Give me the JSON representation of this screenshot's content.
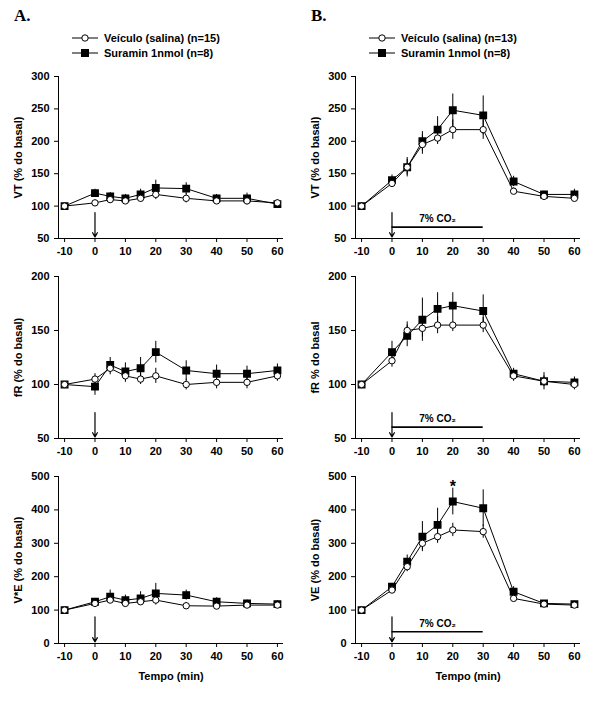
{
  "chart_data": [
    {
      "type": "line",
      "title": "A.",
      "legend": "top",
      "y_label": "VT (% do basal)",
      "x": [
        -10,
        0,
        5,
        10,
        15,
        20,
        30,
        40,
        50,
        60
      ],
      "xlim": [
        -12,
        62
      ],
      "xticks": [
        -10,
        0,
        10,
        20,
        30,
        40,
        50,
        60
      ],
      "ylim": [
        50,
        300
      ],
      "yticks": [
        50,
        100,
        150,
        200,
        250,
        300
      ],
      "arrow_x": 0,
      "series": [
        {
          "name": "Veículo (salina) (n=15)",
          "color": "#000000",
          "marker": "open_circle",
          "values": [
            100,
            105,
            110,
            108,
            112,
            118,
            112,
            108,
            108,
            105
          ],
          "errors": [
            0,
            4,
            5,
            5,
            6,
            8,
            7,
            5,
            6,
            5
          ]
        },
        {
          "name": "Suramin 1nmol (n=8)",
          "color": "#000000",
          "marker": "square",
          "values": [
            100,
            120,
            115,
            112,
            118,
            128,
            127,
            112,
            112,
            103
          ],
          "errors": [
            0,
            6,
            6,
            6,
            8,
            12,
            9,
            6,
            8,
            5
          ]
        }
      ]
    },
    {
      "type": "line",
      "y_label": "fR (% do basal)",
      "x": [
        -10,
        0,
        5,
        10,
        15,
        20,
        30,
        40,
        50,
        60
      ],
      "xlim": [
        -12,
        62
      ],
      "xticks": [
        -10,
        0,
        10,
        20,
        30,
        40,
        50,
        60
      ],
      "ylim": [
        50,
        200
      ],
      "yticks": [
        50,
        100,
        150,
        200
      ],
      "arrow_x": 0,
      "series": [
        {
          "name": "Veículo (salina) (n=15)",
          "color": "#000000",
          "marker": "open_circle",
          "values": [
            100,
            105,
            115,
            108,
            105,
            108,
            100,
            102,
            102,
            108
          ],
          "errors": [
            0,
            5,
            6,
            6,
            5,
            7,
            5,
            6,
            6,
            5
          ]
        },
        {
          "name": "Suramin 1nmol (n=8)",
          "color": "#000000",
          "marker": "square",
          "values": [
            100,
            98,
            118,
            112,
            115,
            130,
            113,
            110,
            110,
            113
          ],
          "errors": [
            0,
            8,
            7,
            8,
            10,
            10,
            9,
            8,
            7,
            6
          ]
        }
      ]
    },
    {
      "type": "line",
      "y_label": "V*E (% do basal)",
      "x_label": "Tempo (min)",
      "x": [
        -10,
        0,
        5,
        10,
        15,
        20,
        30,
        40,
        50,
        60
      ],
      "xlim": [
        -12,
        62
      ],
      "xticks": [
        -10,
        0,
        10,
        20,
        30,
        40,
        50,
        60
      ],
      "ylim": [
        0,
        500
      ],
      "yticks": [
        0,
        100,
        200,
        300,
        400,
        500
      ],
      "arrow_x": 0,
      "series": [
        {
          "name": "Veículo (salina) (n=15)",
          "color": "#000000",
          "marker": "open_circle",
          "values": [
            100,
            120,
            130,
            120,
            125,
            130,
            113,
            112,
            115,
            115
          ],
          "errors": [
            0,
            8,
            10,
            10,
            10,
            15,
            10,
            8,
            8,
            8
          ]
        },
        {
          "name": "Suramin 1nmol (n=8)",
          "color": "#000000",
          "marker": "square",
          "values": [
            100,
            125,
            140,
            130,
            135,
            150,
            145,
            125,
            120,
            118
          ],
          "errors": [
            0,
            10,
            20,
            15,
            20,
            30,
            15,
            12,
            10,
            10
          ]
        }
      ]
    },
    {
      "type": "line",
      "title": "B.",
      "legend": "top",
      "y_label": "VT (% do basal)",
      "x": [
        -10,
        0,
        5,
        10,
        15,
        20,
        30,
        40,
        50,
        60
      ],
      "xlim": [
        -12,
        62
      ],
      "xticks": [
        -10,
        0,
        10,
        20,
        30,
        40,
        50,
        60
      ],
      "ylim": [
        50,
        300
      ],
      "yticks": [
        50,
        100,
        150,
        200,
        250,
        300
      ],
      "arrow_x": 0,
      "annotations": [
        {
          "text": "7% CO₂",
          "x1": 0,
          "x2": 30
        }
      ],
      "series": [
        {
          "name": "Veículo (salina) (n=13)",
          "color": "#000000",
          "marker": "open_circle",
          "values": [
            100,
            135,
            160,
            195,
            205,
            218,
            218,
            123,
            115,
            112
          ],
          "errors": [
            0,
            5,
            12,
            15,
            10,
            15,
            15,
            5,
            5,
            5
          ]
        },
        {
          "name": "Suramin 1nmol (n=8)",
          "color": "#000000",
          "marker": "square",
          "values": [
            100,
            140,
            160,
            200,
            218,
            248,
            240,
            138,
            118,
            118
          ],
          "errors": [
            0,
            8,
            15,
            15,
            20,
            25,
            30,
            8,
            5,
            8
          ]
        }
      ]
    },
    {
      "type": "line",
      "y_label": "fR % do basal",
      "x": [
        -10,
        0,
        5,
        10,
        15,
        20,
        30,
        40,
        50,
        60
      ],
      "xlim": [
        -12,
        62
      ],
      "xticks": [
        -10,
        0,
        10,
        20,
        30,
        40,
        50,
        60
      ],
      "ylim": [
        50,
        200
      ],
      "yticks": [
        50,
        100,
        150,
        200
      ],
      "arrow_x": 0,
      "annotations": [
        {
          "text": "7% CO₂",
          "x1": 0,
          "x2": 30
        }
      ],
      "series": [
        {
          "name": "Veículo (salina) (n=13)",
          "color": "#000000",
          "marker": "open_circle",
          "values": [
            100,
            122,
            150,
            152,
            155,
            155,
            155,
            108,
            103,
            100
          ],
          "errors": [
            0,
            6,
            8,
            8,
            8,
            6,
            7,
            5,
            5,
            5
          ]
        },
        {
          "name": "Suramin 1nmol (n=8)",
          "color": "#000000",
          "marker": "square",
          "values": [
            100,
            130,
            145,
            160,
            170,
            173,
            168,
            110,
            103,
            102
          ],
          "errors": [
            0,
            10,
            10,
            20,
            15,
            12,
            15,
            5,
            8,
            5
          ]
        }
      ]
    },
    {
      "type": "line",
      "y_label": "VE (% do basal)",
      "x_label": "Tempo (min)",
      "x": [
        -10,
        0,
        5,
        10,
        15,
        20,
        30,
        40,
        50,
        60
      ],
      "xlim": [
        -12,
        62
      ],
      "xticks": [
        -10,
        0,
        10,
        20,
        30,
        40,
        50,
        60
      ],
      "ylim": [
        0,
        500
      ],
      "yticks": [
        0,
        100,
        200,
        300,
        400,
        500
      ],
      "arrow_x": 0,
      "annotations": [
        {
          "text": "7% CO₂",
          "x1": 0,
          "x2": 30
        },
        {
          "text": "*",
          "x": 20,
          "y": 470
        }
      ],
      "series": [
        {
          "name": "Veículo (salina) (n=13)",
          "color": "#000000",
          "marker": "open_circle",
          "values": [
            100,
            160,
            230,
            300,
            320,
            340,
            335,
            135,
            118,
            115
          ],
          "errors": [
            0,
            10,
            15,
            20,
            20,
            20,
            20,
            10,
            5,
            5
          ]
        },
        {
          "name": "Suramin 1nmol (n=8)",
          "color": "#000000",
          "marker": "square",
          "values": [
            100,
            170,
            245,
            320,
            355,
            425,
            405,
            155,
            120,
            118
          ],
          "errors": [
            0,
            10,
            20,
            45,
            50,
            40,
            55,
            15,
            8,
            8
          ]
        }
      ]
    }
  ]
}
